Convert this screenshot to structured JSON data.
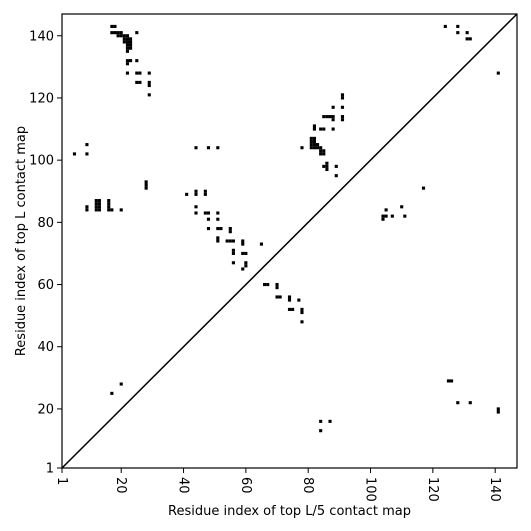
{
  "chart_data": {
    "type": "scatter",
    "xlabel": "Residue index of top L/5 contact map",
    "ylabel": "Residue index of top L contact map",
    "xlim": [
      1,
      147
    ],
    "ylim": [
      1,
      147
    ],
    "x_ticks": [
      1,
      20,
      40,
      60,
      80,
      100,
      120,
      140
    ],
    "y_ticks": [
      1,
      20,
      40,
      60,
      80,
      100,
      120,
      140
    ],
    "x_tick_rotation": "vertical",
    "grid": false,
    "legend": "none",
    "marker": "small filled squares",
    "mark_color": "#000000",
    "diagonal_line": true,
    "series": [
      {
        "points": [
          [
            17,
            143
          ],
          [
            18,
            143
          ],
          [
            17,
            141
          ],
          [
            18,
            141
          ],
          [
            19,
            141
          ],
          [
            20,
            141
          ],
          [
            19,
            140
          ],
          [
            20,
            140
          ],
          [
            21,
            140
          ],
          [
            22,
            140
          ],
          [
            21,
            139
          ],
          [
            22,
            139
          ],
          [
            23,
            139
          ],
          [
            21,
            138
          ],
          [
            22,
            138
          ],
          [
            23,
            138
          ],
          [
            22,
            137
          ],
          [
            23,
            137
          ],
          [
            22,
            136
          ],
          [
            23,
            136
          ],
          [
            22,
            135
          ],
          [
            25,
            141
          ],
          [
            22,
            132
          ],
          [
            23,
            132
          ],
          [
            22,
            131
          ],
          [
            25,
            132
          ],
          [
            22,
            128
          ],
          [
            25,
            128
          ],
          [
            26,
            128
          ],
          [
            29,
            128
          ],
          [
            25,
            125
          ],
          [
            26,
            125
          ],
          [
            29,
            125
          ],
          [
            29,
            124
          ],
          [
            29,
            121
          ],
          [
            91,
            121
          ],
          [
            91,
            120
          ],
          [
            91,
            117
          ],
          [
            88,
            117
          ],
          [
            91,
            114
          ],
          [
            91,
            113
          ],
          [
            85,
            114
          ],
          [
            86,
            114
          ],
          [
            87,
            114
          ],
          [
            88,
            114
          ],
          [
            88,
            113
          ],
          [
            82,
            111
          ],
          [
            82,
            110
          ],
          [
            84,
            110
          ],
          [
            85,
            110
          ],
          [
            88,
            110
          ],
          [
            81,
            107
          ],
          [
            82,
            107
          ],
          [
            81,
            106
          ],
          [
            82,
            106
          ],
          [
            81,
            105
          ],
          [
            82,
            105
          ],
          [
            83,
            105
          ],
          [
            81,
            104
          ],
          [
            82,
            104
          ],
          [
            83,
            104
          ],
          [
            84,
            104
          ],
          [
            78,
            104
          ],
          [
            84,
            103
          ],
          [
            85,
            103
          ],
          [
            84,
            102
          ],
          [
            85,
            102
          ],
          [
            86,
            99
          ],
          [
            86,
            98
          ],
          [
            85,
            98
          ],
          [
            86,
            97
          ],
          [
            89,
            98
          ],
          [
            89,
            95
          ],
          [
            44,
            104
          ],
          [
            48,
            104
          ],
          [
            51,
            104
          ],
          [
            5,
            102
          ],
          [
            9,
            102
          ],
          [
            9,
            105
          ],
          [
            28,
            93
          ],
          [
            28,
            92
          ],
          [
            28,
            91
          ],
          [
            44,
            90
          ],
          [
            44,
            89
          ],
          [
            41,
            89
          ],
          [
            47,
            90
          ],
          [
            47,
            89
          ],
          [
            44,
            85
          ],
          [
            44,
            83
          ],
          [
            47,
            83
          ],
          [
            48,
            83
          ],
          [
            51,
            83
          ],
          [
            48,
            81
          ],
          [
            51,
            81
          ],
          [
            48,
            78
          ],
          [
            51,
            78
          ],
          [
            52,
            78
          ],
          [
            55,
            78
          ],
          [
            55,
            77
          ],
          [
            51,
            75
          ],
          [
            51,
            74
          ],
          [
            54,
            74
          ],
          [
            55,
            74
          ],
          [
            56,
            74
          ],
          [
            59,
            74
          ],
          [
            59,
            73
          ],
          [
            56,
            71
          ],
          [
            56,
            70
          ],
          [
            59,
            70
          ],
          [
            60,
            70
          ],
          [
            56,
            67
          ],
          [
            60,
            67
          ],
          [
            60,
            66
          ],
          [
            59,
            65
          ],
          [
            65,
            73
          ],
          [
            66,
            60
          ],
          [
            67,
            60
          ],
          [
            70,
            60
          ],
          [
            70,
            59
          ],
          [
            70,
            56
          ],
          [
            71,
            56
          ],
          [
            74,
            56
          ],
          [
            74,
            55
          ],
          [
            77,
            55
          ],
          [
            74,
            52
          ],
          [
            75,
            52
          ],
          [
            78,
            52
          ],
          [
            78,
            51
          ],
          [
            78,
            48
          ],
          [
            9,
            85
          ],
          [
            9,
            84
          ],
          [
            12,
            87
          ],
          [
            13,
            87
          ],
          [
            12,
            86
          ],
          [
            13,
            86
          ],
          [
            12,
            85
          ],
          [
            13,
            85
          ],
          [
            12,
            84
          ],
          [
            13,
            84
          ],
          [
            16,
            87
          ],
          [
            16,
            86
          ],
          [
            16,
            85
          ],
          [
            16,
            84
          ],
          [
            17,
            84
          ],
          [
            20,
            84
          ],
          [
            104,
            82
          ],
          [
            104,
            81
          ],
          [
            105,
            84
          ],
          [
            105,
            82
          ],
          [
            107,
            82
          ],
          [
            110,
            85
          ],
          [
            111,
            82
          ],
          [
            117,
            91
          ],
          [
            124,
            143
          ],
          [
            128,
            143
          ],
          [
            128,
            141
          ],
          [
            131,
            141
          ],
          [
            131,
            139
          ],
          [
            132,
            139
          ],
          [
            141,
            128
          ],
          [
            125,
            29
          ],
          [
            126,
            29
          ],
          [
            128,
            22
          ],
          [
            132,
            22
          ],
          [
            141,
            20
          ],
          [
            141,
            19
          ],
          [
            84,
            16
          ],
          [
            87,
            16
          ],
          [
            84,
            13
          ],
          [
            20,
            28
          ],
          [
            17,
            25
          ]
        ]
      }
    ]
  }
}
